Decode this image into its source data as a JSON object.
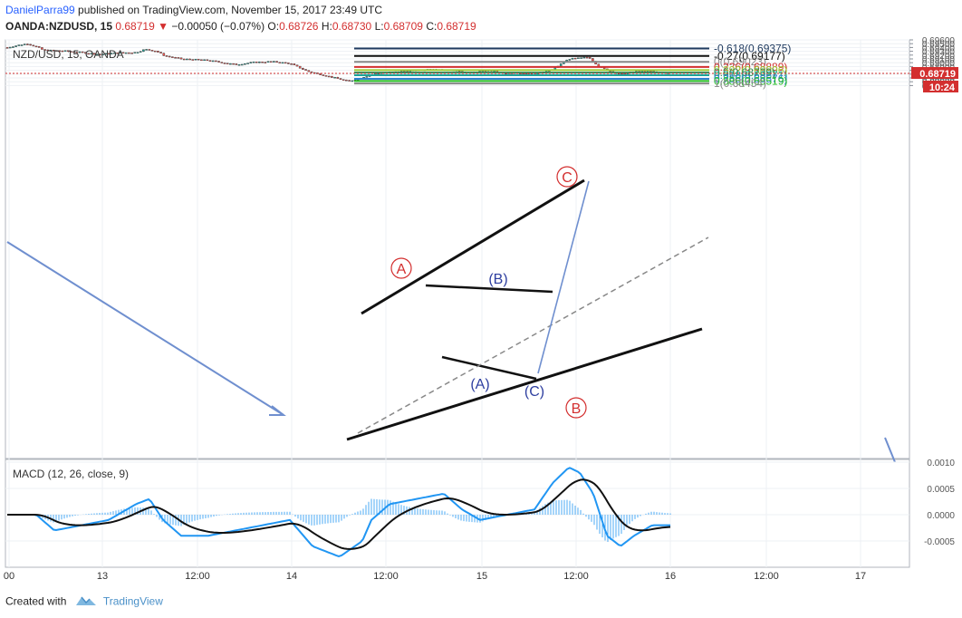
{
  "header": {
    "author": "DanielParra99",
    "published_text": " published on TradingView.com, November 15, 2017 23:49 UTC",
    "symbol_interval": "OANDA:NZDUSD, 15",
    "last": "0.68719",
    "change": "−0.00050 (−0.07%)",
    "o_label": "O:",
    "o": "0.68726",
    "h_label": "H:",
    "h": "0.68730",
    "l_label": "L:",
    "l": "0.68709",
    "c_label": "C:",
    "c": "0.68719"
  },
  "chart": {
    "legend": "NZD/USD, 15, OANDA",
    "price_ticks": [
      "0.69600",
      "0.69500",
      "0.69400",
      "0.69300",
      "0.69200",
      "0.69100",
      "0.69000",
      "0.68900",
      "0.68800",
      "0.68700",
      "0.68600",
      "0.68500",
      "0.68400"
    ],
    "current_price": "0.68719",
    "countdown": "10:24",
    "time_labels": [
      "00",
      "13",
      "12:00",
      "14",
      "12:00",
      "15",
      "12:00",
      "16",
      "12:00",
      "17"
    ],
    "colors": {
      "up": "#26a69a",
      "down": "#ef5350",
      "current_price": "#d32f2f"
    }
  },
  "fibonacci": [
    {
      "label": "-0.618(0.69375)",
      "price": 0.69375,
      "color": "#1f3a5f"
    },
    {
      "label": "-0.27(0.69177)",
      "price": 0.69177,
      "color": "#111111"
    },
    {
      "label": "0(0.69023)",
      "price": 0.69023,
      "color": "#888888"
    },
    {
      "label": "0.236(0.68889)",
      "price": 0.68889,
      "color": "#d32f2f"
    },
    {
      "label": "0.382(0.68806)",
      "price": 0.68806,
      "color": "#9acd32"
    },
    {
      "label": "0.5(0.68739)",
      "price": 0.68739,
      "color": "#2e8b57"
    },
    {
      "label": "0.618(0.68671)",
      "price": 0.68671,
      "color": "#1aa39a"
    },
    {
      "label": "0.786(0.68576)",
      "price": 0.68576,
      "color": "#2f7fd0"
    },
    {
      "label": "0.886(0.68519)",
      "price": 0.68519,
      "color": "#22bb22"
    },
    {
      "label": "1(0.68454)",
      "price": 0.68454,
      "color": "#888888"
    }
  ],
  "wave_labels": {
    "a_red": "A",
    "b_red": "B",
    "c_red": "C",
    "a_blue": "(A)",
    "b_blue": "(B)",
    "c_blue": "(C)"
  },
  "macd": {
    "legend": "MACD (12, 26, close, 9)",
    "ticks": [
      "0.0010",
      "0.0005",
      "0.0000",
      "-0.0005"
    ]
  },
  "footer": {
    "created_with": "Created with",
    "brand": "TradingView"
  }
}
